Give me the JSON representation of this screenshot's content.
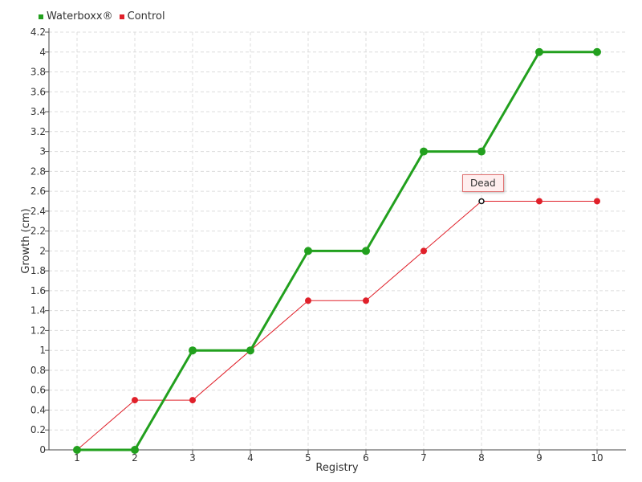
{
  "chart_data": {
    "type": "line",
    "categories": [
      "1",
      "2",
      "3",
      "4",
      "5",
      "6",
      "7",
      "8",
      "9",
      "10"
    ],
    "y_ticks": [
      "0",
      "0.2",
      "0.4",
      "0.6",
      "0.8",
      "1",
      "1.2",
      "1.4",
      "1.6",
      "1.8",
      "2",
      "2.2",
      "2.4",
      "2.6",
      "2.8",
      "3",
      "3.2",
      "3.4",
      "3.6",
      "3.8",
      "4",
      "4.2"
    ],
    "series": [
      {
        "name": "Waterboxx®",
        "color": "#22a01e",
        "values": [
          0,
          0,
          1,
          1,
          2,
          2,
          3,
          3,
          4,
          4
        ]
      },
      {
        "name": "Control",
        "color": "#e0202a",
        "values": [
          0,
          0.5,
          0.5,
          1,
          1.5,
          1.5,
          2,
          2.5,
          2.5,
          2.5
        ]
      }
    ],
    "xlabel": "Registry",
    "ylabel": "Growth (cm)",
    "ylim": [
      0,
      4.2
    ],
    "grid": true,
    "legend_position": "top-left",
    "annotation": {
      "text": "Dead",
      "series": "Control",
      "x": "8"
    }
  }
}
